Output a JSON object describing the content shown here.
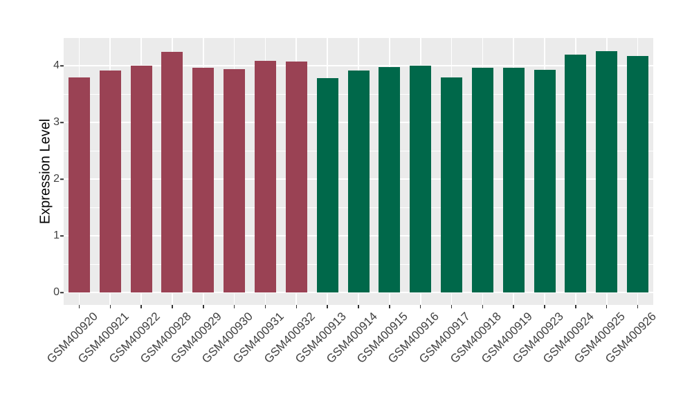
{
  "chart_data": {
    "type": "bar",
    "title": "",
    "xlabel": "",
    "ylabel": "Expression Level",
    "categories": [
      "GSM400920",
      "GSM400921",
      "GSM400922",
      "GSM400928",
      "GSM400929",
      "GSM400930",
      "GSM400931",
      "GSM400932",
      "GSM400913",
      "GSM400914",
      "GSM400915",
      "GSM400916",
      "GSM400917",
      "GSM400918",
      "GSM400919",
      "GSM400923",
      "GSM400924",
      "GSM400925",
      "GSM400926"
    ],
    "values": [
      3.79,
      3.92,
      4.0,
      4.24,
      3.96,
      3.94,
      4.08,
      4.07,
      3.78,
      3.91,
      3.97,
      4.0,
      3.79,
      3.96,
      3.96,
      3.93,
      4.2,
      4.26,
      4.17
    ],
    "groups": [
      "red",
      "red",
      "red",
      "red",
      "red",
      "red",
      "red",
      "red",
      "green",
      "green",
      "green",
      "green",
      "green",
      "green",
      "green",
      "green",
      "green",
      "green",
      "green"
    ],
    "group_colors": {
      "red": "#9a4254",
      "green": "#00684a"
    },
    "yticks": [
      0,
      1,
      2,
      3,
      4
    ],
    "ytick_labels": [
      "0",
      "1",
      "2",
      "3",
      "4"
    ],
    "ylim": [
      -0.22,
      4.49
    ],
    "grid": {
      "on": true,
      "major_color": "#ffffff",
      "minor_color": "#ffffff",
      "minor_step": 0.5
    },
    "panel_bg": "#ebebeb",
    "legend": "none"
  }
}
